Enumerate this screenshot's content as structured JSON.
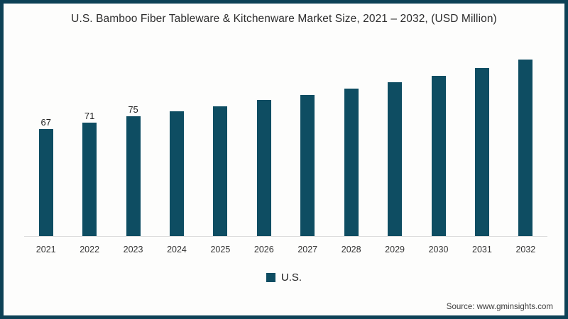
{
  "title": "U.S. Bamboo Fiber Tableware & Kitchenware Market Size, 2021 – 2032, (USD Million)",
  "legend": {
    "label": "U.S.",
    "swatch_icon": "filled-square-swatch"
  },
  "source": "Source: www.gminsights.com",
  "colors": {
    "bar": "#0e4d62",
    "frame_border": "#0d4156",
    "axis_line": "#dcdcdc",
    "background": "#fdfdfc",
    "title_text": "#2d2d2d"
  },
  "chart_data": {
    "type": "bar",
    "title": "U.S. Bamboo Fiber Tableware & Kitchenware Market Size, 2021 – 2032, (USD Million)",
    "categories": [
      "2021",
      "2022",
      "2023",
      "2024",
      "2025",
      "2026",
      "2027",
      "2028",
      "2029",
      "2030",
      "2031",
      "2032"
    ],
    "series": [
      {
        "name": "U.S.",
        "values": [
          67,
          71,
          75,
          78,
          81,
          85,
          88,
          92,
          96,
          100,
          105,
          110
        ]
      }
    ],
    "data_labels": [
      "67",
      "71",
      "75",
      "",
      "",
      "",
      "",
      "",
      "",
      "",
      "",
      ""
    ],
    "xlabel": "",
    "ylabel": "USD Million",
    "ylim": [
      0,
      115
    ],
    "grid": false,
    "y_axis_shown": false,
    "legend_position": "bottom-center"
  }
}
